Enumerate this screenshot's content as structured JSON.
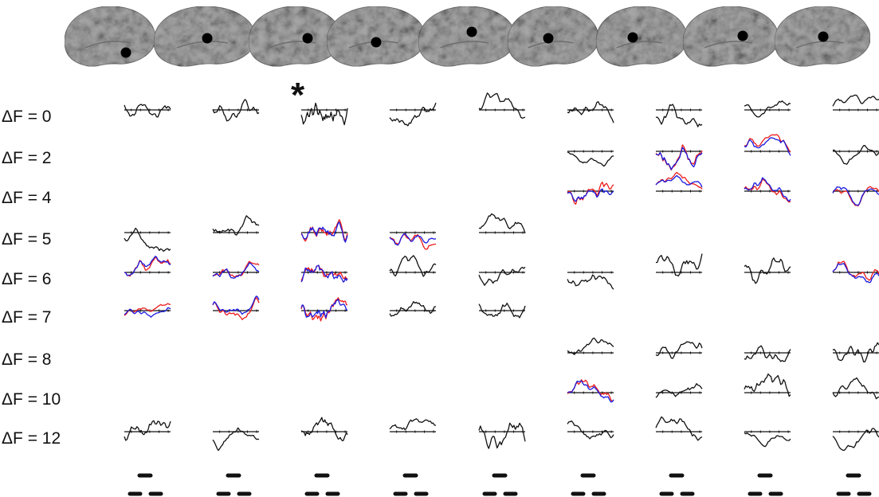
{
  "row_labels": [
    "ΔF = 0",
    "ΔF = 2",
    "ΔF = 4",
    "ΔF = 5",
    "ΔF = 6",
    "ΔF = 7",
    "ΔF = 8",
    "ΔF = 10",
    "ΔF = 12"
  ],
  "star_label": "*",
  "colors": {
    "trace": "#111111",
    "trace_red": "#ee1c1c",
    "trace_blue": "#1a1adf",
    "brain": "#a9a9a9",
    "electrode": "#000000"
  },
  "electrode_count": 9,
  "waveform_panels": [
    {
      "electrode": 1,
      "row": "ΔF = 0",
      "colors": [
        "black"
      ]
    },
    {
      "electrode": 2,
      "row": "ΔF = 0",
      "colors": [
        "black"
      ]
    },
    {
      "electrode": 3,
      "row": "ΔF = 0",
      "colors": [
        "black"
      ]
    },
    {
      "electrode": 4,
      "row": "ΔF = 0",
      "colors": [
        "black"
      ]
    },
    {
      "electrode": 5,
      "row": "ΔF = 0",
      "colors": [
        "black"
      ]
    },
    {
      "electrode": 6,
      "row": "ΔF = 0",
      "colors": [
        "black"
      ]
    },
    {
      "electrode": 7,
      "row": "ΔF = 0",
      "colors": [
        "black"
      ]
    },
    {
      "electrode": 8,
      "row": "ΔF = 0",
      "colors": [
        "black"
      ]
    },
    {
      "electrode": 9,
      "row": "ΔF = 0",
      "colors": [
        "black"
      ]
    },
    {
      "electrode": 6,
      "row": "ΔF = 2",
      "colors": [
        "black"
      ]
    },
    {
      "electrode": 7,
      "row": "ΔF = 2",
      "colors": [
        "red",
        "blue",
        "black"
      ]
    },
    {
      "electrode": 8,
      "row": "ΔF = 2",
      "colors": [
        "red",
        "blue",
        "black"
      ]
    },
    {
      "electrode": 9,
      "row": "ΔF = 2",
      "colors": [
        "black"
      ]
    },
    {
      "electrode": 6,
      "row": "ΔF = 4",
      "colors": [
        "red",
        "blue",
        "black"
      ]
    },
    {
      "electrode": 7,
      "row": "ΔF = 4",
      "colors": [
        "red",
        "blue",
        "black"
      ]
    },
    {
      "electrode": 8,
      "row": "ΔF = 4",
      "colors": [
        "red",
        "blue",
        "black"
      ]
    },
    {
      "electrode": 9,
      "row": "ΔF = 4",
      "colors": [
        "red",
        "blue",
        "black"
      ]
    },
    {
      "electrode": 1,
      "row": "ΔF = 5",
      "colors": [
        "black"
      ]
    },
    {
      "electrode": 2,
      "row": "ΔF = 5",
      "colors": [
        "black"
      ]
    },
    {
      "electrode": 3,
      "row": "ΔF = 5",
      "colors": [
        "red",
        "blue",
        "black"
      ]
    },
    {
      "electrode": 4,
      "row": "ΔF = 5",
      "colors": [
        "red",
        "blue",
        "black"
      ]
    },
    {
      "electrode": 5,
      "row": "ΔF = 5",
      "colors": [
        "black"
      ]
    },
    {
      "electrode": 1,
      "row": "ΔF = 6",
      "colors": [
        "red",
        "blue",
        "black"
      ]
    },
    {
      "electrode": 2,
      "row": "ΔF = 6",
      "colors": [
        "red",
        "blue",
        "black"
      ]
    },
    {
      "electrode": 3,
      "row": "ΔF = 6",
      "colors": [
        "red",
        "blue",
        "black"
      ]
    },
    {
      "electrode": 4,
      "row": "ΔF = 6",
      "colors": [
        "black"
      ]
    },
    {
      "electrode": 5,
      "row": "ΔF = 6",
      "colors": [
        "black"
      ]
    },
    {
      "electrode": 6,
      "row": "ΔF = 6",
      "colors": [
        "black"
      ]
    },
    {
      "electrode": 7,
      "row": "ΔF = 6",
      "colors": [
        "black"
      ]
    },
    {
      "electrode": 8,
      "row": "ΔF = 6",
      "colors": [
        "black"
      ]
    },
    {
      "electrode": 9,
      "row": "ΔF = 6",
      "colors": [
        "red",
        "blue",
        "black"
      ]
    },
    {
      "electrode": 1,
      "row": "ΔF = 7",
      "colors": [
        "red",
        "blue",
        "black"
      ]
    },
    {
      "electrode": 2,
      "row": "ΔF = 7",
      "colors": [
        "red",
        "blue",
        "black"
      ]
    },
    {
      "electrode": 3,
      "row": "ΔF = 7",
      "colors": [
        "red",
        "blue",
        "black"
      ]
    },
    {
      "electrode": 4,
      "row": "ΔF = 7",
      "colors": [
        "black"
      ]
    },
    {
      "electrode": 5,
      "row": "ΔF = 7",
      "colors": [
        "black"
      ]
    },
    {
      "electrode": 6,
      "row": "ΔF = 8",
      "colors": [
        "black"
      ]
    },
    {
      "electrode": 7,
      "row": "ΔF = 8",
      "colors": [
        "black"
      ]
    },
    {
      "electrode": 8,
      "row": "ΔF = 8",
      "colors": [
        "black"
      ]
    },
    {
      "electrode": 9,
      "row": "ΔF = 8",
      "colors": [
        "black"
      ]
    },
    {
      "electrode": 6,
      "row": "ΔF = 10",
      "colors": [
        "red",
        "blue",
        "black"
      ]
    },
    {
      "electrode": 7,
      "row": "ΔF = 10",
      "colors": [
        "black"
      ]
    },
    {
      "electrode": 8,
      "row": "ΔF = 10",
      "colors": [
        "black"
      ]
    },
    {
      "electrode": 9,
      "row": "ΔF = 10",
      "colors": [
        "black"
      ]
    },
    {
      "electrode": 1,
      "row": "ΔF = 12",
      "colors": [
        "black"
      ]
    },
    {
      "electrode": 2,
      "row": "ΔF = 12",
      "colors": [
        "black"
      ]
    },
    {
      "electrode": 3,
      "row": "ΔF = 12",
      "colors": [
        "black"
      ]
    },
    {
      "electrode": 4,
      "row": "ΔF = 12",
      "colors": [
        "black"
      ]
    },
    {
      "electrode": 5,
      "row": "ΔF = 12",
      "colors": [
        "black"
      ]
    },
    {
      "electrode": 6,
      "row": "ΔF = 12",
      "colors": [
        "black"
      ]
    },
    {
      "electrode": 7,
      "row": "ΔF = 12",
      "colors": [
        "black"
      ]
    },
    {
      "electrode": 8,
      "row": "ΔF = 12",
      "colors": [
        "black"
      ]
    },
    {
      "electrode": 9,
      "row": "ΔF = 12",
      "colors": [
        "black"
      ]
    }
  ]
}
